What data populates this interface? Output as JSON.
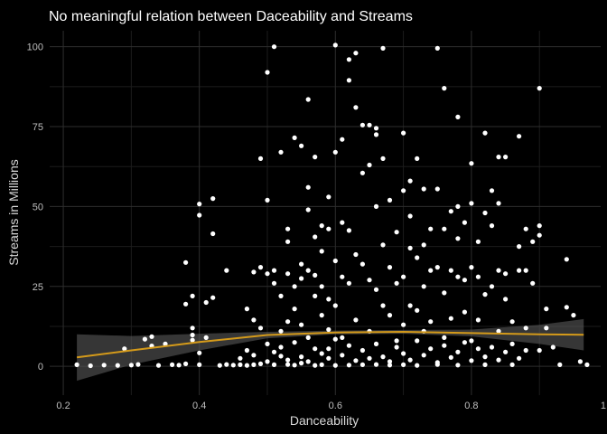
{
  "chart_data": {
    "type": "scatter",
    "title": "No meaningful relation between Daceability and Streams",
    "xlabel": "Danceability",
    "ylabel": "Streams in Millions",
    "xlim": [
      0.18,
      0.99
    ],
    "ylim": [
      -9,
      105
    ],
    "x_ticks": [
      0.2,
      0.4,
      0.6,
      0.8,
      1.0
    ],
    "x_tick_labels": [
      "0.2",
      "0.4",
      "0.6",
      "0.8",
      "1.0"
    ],
    "y_ticks": [
      0,
      25,
      50,
      75,
      100
    ],
    "y_tick_labels": [
      "0",
      "25",
      "50",
      "75",
      "100"
    ],
    "grid": true,
    "legend": "none",
    "colors": {
      "background": "#000000",
      "grid_major": "#2e2e2e",
      "grid_minor": "#1c1c1c",
      "points": "#ffffff",
      "smooth_line": "#d49a1a",
      "confidence_band": "#5a5a5a"
    },
    "points": [
      [
        0.22,
        0.5
      ],
      [
        0.24,
        0.2
      ],
      [
        0.26,
        0.4
      ],
      [
        0.28,
        0.3
      ],
      [
        0.29,
        5.5
      ],
      [
        0.3,
        0.4
      ],
      [
        0.31,
        0.6
      ],
      [
        0.32,
        8.5
      ],
      [
        0.33,
        9.3
      ],
      [
        0.33,
        6.4
      ],
      [
        0.34,
        0.3
      ],
      [
        0.35,
        7.0
      ],
      [
        0.36,
        0.5
      ],
      [
        0.37,
        0.4
      ],
      [
        0.38,
        32.5
      ],
      [
        0.38,
        19.5
      ],
      [
        0.38,
        0.8
      ],
      [
        0.39,
        22.0
      ],
      [
        0.39,
        12.0
      ],
      [
        0.39,
        9.8
      ],
      [
        0.39,
        8.2
      ],
      [
        0.4,
        50.8
      ],
      [
        0.4,
        47.3
      ],
      [
        0.4,
        4.2
      ],
      [
        0.4,
        0.5
      ],
      [
        0.41,
        20.0
      ],
      [
        0.41,
        9.0
      ],
      [
        0.42,
        52.5
      ],
      [
        0.42,
        21.5
      ],
      [
        0.42,
        41.5
      ],
      [
        0.43,
        0.3
      ],
      [
        0.44,
        30.0
      ],
      [
        0.44,
        0.6
      ],
      [
        0.45,
        0.4
      ],
      [
        0.46,
        0.5
      ],
      [
        0.47,
        18.0
      ],
      [
        0.47,
        0.3
      ],
      [
        0.48,
        29.5
      ],
      [
        0.48,
        14.5
      ],
      [
        0.48,
        0.5
      ],
      [
        0.49,
        65.0
      ],
      [
        0.49,
        31.0
      ],
      [
        0.49,
        12.0
      ],
      [
        0.49,
        0.8
      ],
      [
        0.5,
        92.0
      ],
      [
        0.5,
        52.0
      ],
      [
        0.5,
        29.0
      ],
      [
        0.5,
        7.0
      ],
      [
        0.51,
        100.0
      ],
      [
        0.51,
        30.0
      ],
      [
        0.51,
        26.0
      ],
      [
        0.51,
        0.5
      ],
      [
        0.52,
        67.0
      ],
      [
        0.52,
        22.0
      ],
      [
        0.52,
        11.0
      ],
      [
        0.52,
        3.2
      ],
      [
        0.53,
        43.0
      ],
      [
        0.53,
        39.0
      ],
      [
        0.53,
        29.0
      ],
      [
        0.53,
        14.0
      ],
      [
        0.53,
        0.6
      ],
      [
        0.54,
        71.5
      ],
      [
        0.54,
        25.0
      ],
      [
        0.54,
        18.0
      ],
      [
        0.54,
        0.4
      ],
      [
        0.55,
        69.0
      ],
      [
        0.55,
        32.0
      ],
      [
        0.55,
        27.5
      ],
      [
        0.55,
        13.0
      ],
      [
        0.55,
        1.0
      ],
      [
        0.56,
        83.5
      ],
      [
        0.56,
        56.0
      ],
      [
        0.56,
        49.0
      ],
      [
        0.56,
        30.0
      ],
      [
        0.56,
        9.0
      ],
      [
        0.57,
        65.5
      ],
      [
        0.57,
        40.5
      ],
      [
        0.57,
        28.5
      ],
      [
        0.57,
        22.0
      ],
      [
        0.57,
        0.3
      ],
      [
        0.58,
        44.0
      ],
      [
        0.58,
        36.0
      ],
      [
        0.58,
        25.0
      ],
      [
        0.58,
        16.0
      ],
      [
        0.58,
        0.5
      ],
      [
        0.59,
        53.0
      ],
      [
        0.59,
        43.0
      ],
      [
        0.59,
        21.0
      ],
      [
        0.59,
        11.5
      ],
      [
        0.59,
        5.5
      ],
      [
        0.6,
        100.5
      ],
      [
        0.6,
        67.0
      ],
      [
        0.6,
        33.0
      ],
      [
        0.6,
        19.0
      ],
      [
        0.6,
        0.3
      ],
      [
        0.61,
        71.0
      ],
      [
        0.61,
        45.0
      ],
      [
        0.61,
        28.0
      ],
      [
        0.61,
        9.0
      ],
      [
        0.62,
        96.0
      ],
      [
        0.62,
        89.5
      ],
      [
        0.62,
        42.5
      ],
      [
        0.62,
        26.0
      ],
      [
        0.62,
        0.4
      ],
      [
        0.63,
        98.0
      ],
      [
        0.63,
        81.0
      ],
      [
        0.63,
        35.0
      ],
      [
        0.63,
        14.5
      ],
      [
        0.64,
        75.5
      ],
      [
        0.64,
        60.5
      ],
      [
        0.64,
        32.0
      ],
      [
        0.64,
        0.5
      ],
      [
        0.65,
        75.5
      ],
      [
        0.65,
        63.0
      ],
      [
        0.65,
        27.0
      ],
      [
        0.65,
        11.0
      ],
      [
        0.66,
        74.5
      ],
      [
        0.66,
        72.5
      ],
      [
        0.66,
        50.0
      ],
      [
        0.66,
        24.0
      ],
      [
        0.66,
        0.6
      ],
      [
        0.67,
        99.5
      ],
      [
        0.67,
        65.0
      ],
      [
        0.67,
        38.0
      ],
      [
        0.67,
        19.0
      ],
      [
        0.68,
        52.0
      ],
      [
        0.68,
        31.0
      ],
      [
        0.68,
        16.0
      ],
      [
        0.68,
        0.4
      ],
      [
        0.69,
        42.0
      ],
      [
        0.69,
        26.0
      ],
      [
        0.69,
        8.0
      ],
      [
        0.7,
        73.0
      ],
      [
        0.7,
        55.0
      ],
      [
        0.7,
        28.0
      ],
      [
        0.7,
        13.0
      ],
      [
        0.7,
        0.5
      ],
      [
        0.71,
        58.0
      ],
      [
        0.71,
        47.0
      ],
      [
        0.71,
        37.0
      ],
      [
        0.71,
        19.0
      ],
      [
        0.72,
        65.0
      ],
      [
        0.72,
        34.0
      ],
      [
        0.72,
        17.5
      ],
      [
        0.72,
        0.3
      ],
      [
        0.73,
        55.5
      ],
      [
        0.73,
        38.0
      ],
      [
        0.73,
        25.0
      ],
      [
        0.73,
        11.0
      ],
      [
        0.74,
        43.0
      ],
      [
        0.74,
        30.0
      ],
      [
        0.74,
        14.0
      ],
      [
        0.75,
        99.5
      ],
      [
        0.75,
        55.5
      ],
      [
        0.75,
        31.0
      ],
      [
        0.75,
        0.6
      ],
      [
        0.76,
        87.0
      ],
      [
        0.76,
        43.0
      ],
      [
        0.76,
        23.0
      ],
      [
        0.76,
        9.0
      ],
      [
        0.77,
        48.5
      ],
      [
        0.77,
        30.0
      ],
      [
        0.77,
        15.0
      ],
      [
        0.78,
        78.0
      ],
      [
        0.78,
        50.0
      ],
      [
        0.78,
        40.0
      ],
      [
        0.78,
        28.0
      ],
      [
        0.78,
        0.4
      ],
      [
        0.79,
        45.0
      ],
      [
        0.79,
        27.0
      ],
      [
        0.79,
        17.0
      ],
      [
        0.8,
        63.5
      ],
      [
        0.8,
        51.0
      ],
      [
        0.8,
        31.0
      ],
      [
        0.8,
        8.0
      ],
      [
        0.81,
        39.0
      ],
      [
        0.81,
        28.0
      ],
      [
        0.81,
        14.5
      ],
      [
        0.82,
        73.0
      ],
      [
        0.82,
        48.0
      ],
      [
        0.82,
        22.5
      ],
      [
        0.82,
        0.5
      ],
      [
        0.83,
        55.0
      ],
      [
        0.83,
        44.0
      ],
      [
        0.83,
        25.0
      ],
      [
        0.84,
        65.5
      ],
      [
        0.84,
        51.0
      ],
      [
        0.84,
        30.0
      ],
      [
        0.84,
        11.0
      ],
      [
        0.85,
        65.5
      ],
      [
        0.85,
        29.0
      ],
      [
        0.85,
        21.0
      ],
      [
        0.86,
        14.0
      ],
      [
        0.86,
        0.5
      ],
      [
        0.87,
        72.0
      ],
      [
        0.87,
        37.5
      ],
      [
        0.87,
        30.0
      ],
      [
        0.88,
        43.0
      ],
      [
        0.88,
        30.0
      ],
      [
        0.88,
        12.0
      ],
      [
        0.89,
        39.0
      ],
      [
        0.89,
        26.0
      ],
      [
        0.9,
        87.0
      ],
      [
        0.9,
        44.0
      ],
      [
        0.9,
        41.0
      ],
      [
        0.9,
        5.0
      ],
      [
        0.91,
        18.0
      ],
      [
        0.91,
        12.0
      ],
      [
        0.92,
        6.0
      ],
      [
        0.93,
        0.5
      ],
      [
        0.94,
        33.5
      ],
      [
        0.94,
        18.5
      ],
      [
        0.95,
        16.0
      ],
      [
        0.96,
        1.5
      ],
      [
        0.97,
        0.5
      ],
      [
        0.46,
        2.5
      ],
      [
        0.47,
        5.0
      ],
      [
        0.48,
        3.5
      ],
      [
        0.5,
        1.5
      ],
      [
        0.51,
        4.5
      ],
      [
        0.52,
        6.0
      ],
      [
        0.53,
        2.0
      ],
      [
        0.54,
        7.5
      ],
      [
        0.55,
        3.0
      ],
      [
        0.56,
        1.5
      ],
      [
        0.57,
        5.5
      ],
      [
        0.58,
        4.0
      ],
      [
        0.59,
        2.5
      ],
      [
        0.6,
        8.5
      ],
      [
        0.61,
        3.5
      ],
      [
        0.62,
        6.5
      ],
      [
        0.63,
        1.8
      ],
      [
        0.64,
        5.0
      ],
      [
        0.65,
        2.5
      ],
      [
        0.66,
        7.0
      ],
      [
        0.67,
        3.0
      ],
      [
        0.68,
        1.5
      ],
      [
        0.69,
        6.0
      ],
      [
        0.7,
        4.0
      ],
      [
        0.71,
        2.0
      ],
      [
        0.72,
        8.0
      ],
      [
        0.73,
        3.5
      ],
      [
        0.74,
        5.5
      ],
      [
        0.75,
        1.2
      ],
      [
        0.76,
        6.5
      ],
      [
        0.77,
        2.8
      ],
      [
        0.78,
        4.5
      ],
      [
        0.79,
        7.5
      ],
      [
        0.8,
        1.8
      ],
      [
        0.81,
        5.5
      ],
      [
        0.82,
        3.0
      ],
      [
        0.83,
        6.0
      ],
      [
        0.84,
        2.0
      ],
      [
        0.85,
        4.5
      ],
      [
        0.86,
        7.0
      ],
      [
        0.87,
        2.5
      ],
      [
        0.88,
        5.0
      ]
    ],
    "smooth_line": {
      "x": [
        0.22,
        0.3,
        0.4,
        0.5,
        0.6,
        0.7,
        0.8,
        0.9,
        0.965
      ],
      "y": [
        2.8,
        5.0,
        7.6,
        9.8,
        10.6,
        10.8,
        10.4,
        10.0,
        9.9
      ],
      "lower": [
        -4.5,
        0.5,
        5.0,
        8.8,
        10.0,
        10.2,
        9.4,
        7.0,
        5.0
      ],
      "upper": [
        10.0,
        9.5,
        10.2,
        10.8,
        11.2,
        11.4,
        11.5,
        13.0,
        14.8
      ]
    }
  }
}
